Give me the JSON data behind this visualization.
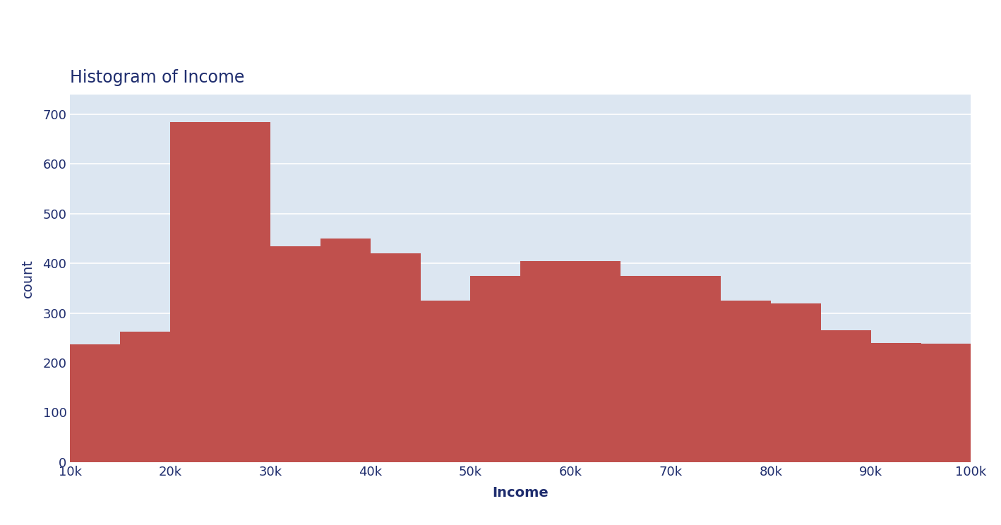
{
  "title": "Histogram of Income",
  "xlabel": "Income",
  "ylabel": "count",
  "bar_color": "#c0504d",
  "background_color": "#dce6f1",
  "figure_background": "#ffffff",
  "title_color": "#1f2d6e",
  "label_color": "#1f2d6e",
  "tick_color": "#1f2d6e",
  "bin_edges": [
    10000,
    15000,
    20000,
    25000,
    30000,
    35000,
    40000,
    45000,
    50000,
    55000,
    60000,
    65000,
    70000,
    75000,
    80000,
    85000,
    90000,
    95000,
    100000
  ],
  "counts": [
    237,
    262,
    685,
    685,
    435,
    450,
    420,
    325,
    375,
    405,
    405,
    375,
    375,
    325,
    320,
    265,
    240,
    238
  ],
  "ylim": [
    0,
    740
  ],
  "yticks": [
    0,
    100,
    200,
    300,
    400,
    500,
    600,
    700
  ],
  "xtick_labels": [
    "10k",
    "20k",
    "30k",
    "40k",
    "50k",
    "60k",
    "70k",
    "80k",
    "90k",
    "100k"
  ],
  "xtick_positions": [
    10000,
    20000,
    30000,
    40000,
    50000,
    60000,
    70000,
    80000,
    90000,
    100000
  ],
  "title_fontsize": 17,
  "axis_label_fontsize": 14,
  "tick_fontsize": 13,
  "grid_color": "#ffffff",
  "grid_linewidth": 1.2
}
